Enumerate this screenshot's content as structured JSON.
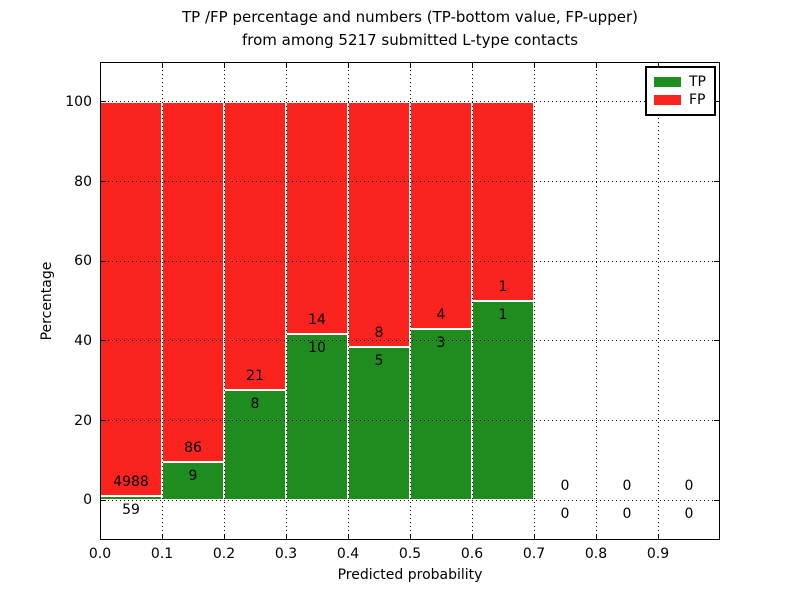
{
  "chart_data": {
    "type": "bar",
    "stacked": true,
    "normalized_to": 100,
    "title_line1": "TP /FP percentage and numbers (TP-bottom value, FP-upper)",
    "title_line2": "from among 5217 submitted L-type contacts",
    "xlabel": "Predicted probability",
    "ylabel": "Percentage",
    "xlim": [
      0.0,
      1.0
    ],
    "ylim": [
      -10,
      110
    ],
    "bin_width": 0.1,
    "categories": [
      "0.0-0.1",
      "0.1-0.2",
      "0.2-0.3",
      "0.3-0.4",
      "0.4-0.5",
      "0.5-0.6",
      "0.6-0.7",
      "0.7-0.8",
      "0.8-0.9",
      "0.9-1.0"
    ],
    "x_tick_labels": [
      "0.0",
      "0.1",
      "0.2",
      "0.3",
      "0.4",
      "0.5",
      "0.6",
      "0.7",
      "0.8",
      "0.9"
    ],
    "y_ticks": [
      0,
      20,
      40,
      60,
      80,
      100
    ],
    "series": [
      {
        "name": "TP",
        "color": "#1e8c1e",
        "counts": [
          59,
          9,
          8,
          10,
          5,
          3,
          1,
          0,
          0,
          0
        ]
      },
      {
        "name": "FP",
        "color": "#fb231d",
        "counts": [
          4988,
          86,
          21,
          14,
          8,
          4,
          1,
          0,
          0,
          0
        ]
      }
    ],
    "grid": {
      "style": "dotted",
      "color": "#000000",
      "axes": "both"
    },
    "legend": {
      "position": "upper right",
      "entries": [
        {
          "label": "TP",
          "color": "#1e8c1e"
        },
        {
          "label": "FP",
          "color": "#fb231d"
        }
      ]
    }
  }
}
